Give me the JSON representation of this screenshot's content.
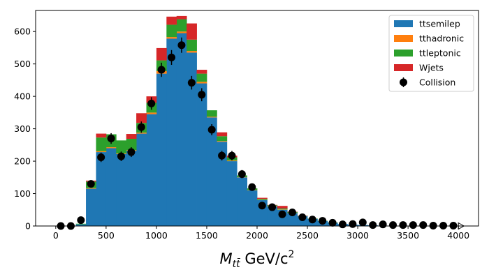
{
  "chart_data": {
    "type": "bar",
    "stacked": true,
    "xlabel_main": "M",
    "xlabel_sub": "tt̄",
    "xlabel_unit": " GeV/c",
    "xlabel_sup": "2",
    "xlim": [
      -200,
      4200
    ],
    "ylim": [
      0,
      665
    ],
    "xticks": [
      0,
      500,
      1000,
      1500,
      2000,
      2500,
      3000,
      3500,
      4000
    ],
    "yticks": [
      0,
      100,
      200,
      300,
      400,
      500,
      600
    ],
    "bin_width": 100,
    "bin_starts": [
      0,
      100,
      200,
      300,
      400,
      500,
      600,
      700,
      800,
      900,
      1000,
      1100,
      1200,
      1300,
      1400,
      1500,
      1600,
      1700,
      1800,
      1900,
      2000,
      2100,
      2200,
      2300,
      2400,
      2500,
      2600,
      2700,
      2800,
      2900,
      3000,
      3100,
      3200,
      3300,
      3400,
      3500,
      3600,
      3700,
      3800,
      3900
    ],
    "legend_position": "top-right",
    "series": [
      {
        "name": "ttsemilep",
        "color": "#1f77b4",
        "values": [
          0,
          0,
          5,
          115,
          228,
          240,
          222,
          232,
          285,
          345,
          470,
          578,
          595,
          535,
          440,
          335,
          260,
          200,
          150,
          110,
          80,
          60,
          50,
          40,
          30,
          22,
          15,
          10,
          6,
          4,
          3,
          2,
          1,
          1,
          1,
          1,
          0,
          0,
          0,
          0
        ]
      },
      {
        "name": "tthadronic",
        "color": "#ff7f0e",
        "values": [
          0,
          0,
          0,
          2,
          3,
          3,
          2,
          2,
          3,
          5,
          8,
          5,
          5,
          5,
          5,
          2,
          2,
          2,
          1,
          1,
          1,
          1,
          1,
          1,
          0,
          0,
          0,
          0,
          0,
          0,
          0,
          0,
          0,
          0,
          0,
          0,
          0,
          0,
          0,
          0
        ]
      },
      {
        "name": "ttleptonic",
        "color": "#2ca02c",
        "values": [
          0,
          0,
          2,
          20,
          42,
          40,
          40,
          35,
          30,
          30,
          33,
          38,
          38,
          35,
          25,
          20,
          15,
          10,
          5,
          5,
          3,
          3,
          3,
          2,
          1,
          1,
          1,
          1,
          0,
          0,
          0,
          0,
          0,
          0,
          0,
          0,
          0,
          0,
          0,
          0
        ]
      },
      {
        "name": "Wjets",
        "color": "#d62728",
        "values": [
          0,
          0,
          0,
          3,
          12,
          0,
          0,
          15,
          30,
          20,
          38,
          25,
          10,
          50,
          12,
          0,
          12,
          5,
          0,
          0,
          3,
          1,
          8,
          1,
          1,
          0,
          0,
          0,
          0,
          0,
          0,
          0,
          0,
          0,
          0,
          0,
          0,
          0,
          0,
          0
        ]
      }
    ],
    "collision": {
      "name": "Collision",
      "color": "#000000",
      "x": [
        50,
        150,
        250,
        350,
        450,
        550,
        650,
        750,
        850,
        950,
        1050,
        1150,
        1250,
        1350,
        1450,
        1550,
        1650,
        1750,
        1850,
        1950,
        2050,
        2150,
        2250,
        2350,
        2450,
        2550,
        2650,
        2750,
        2850,
        2950,
        3050,
        3150,
        3250,
        3350,
        3450,
        3550,
        3650,
        3750,
        3850,
        3950
      ],
      "y": [
        0,
        0,
        18,
        130,
        212,
        270,
        215,
        228,
        305,
        378,
        482,
        520,
        558,
        442,
        405,
        297,
        217,
        217,
        160,
        120,
        63,
        58,
        36,
        42,
        27,
        20,
        16,
        10,
        5,
        6,
        11,
        3,
        5,
        3,
        3,
        3,
        3,
        1,
        1,
        1
      ]
    }
  }
}
